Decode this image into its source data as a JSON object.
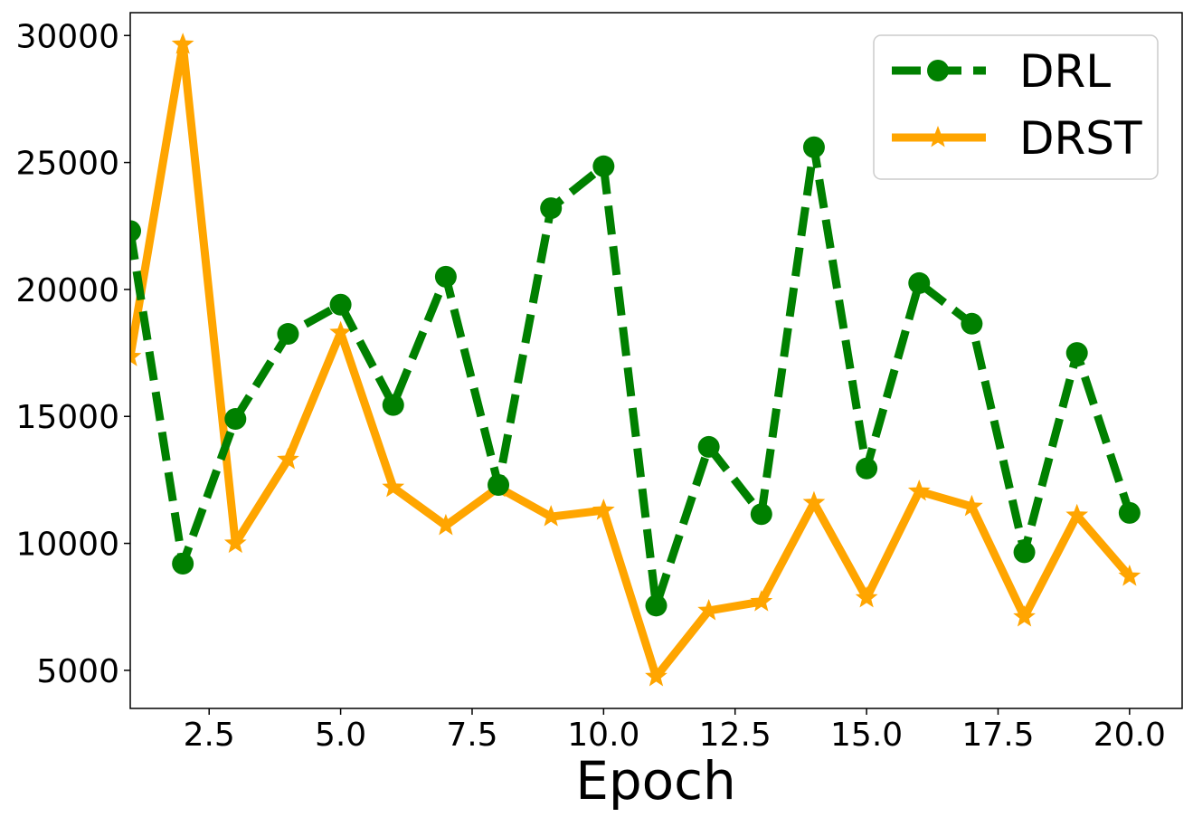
{
  "chart_data": {
    "type": "line",
    "title": "",
    "xlabel": "Epoch",
    "ylabel": "",
    "xlim": [
      1,
      21
    ],
    "ylim": [
      3500,
      30900
    ],
    "grid": false,
    "legend_position": "top-right",
    "x_ticks": [
      "2.5",
      "5.0",
      "7.5",
      "10.0",
      "12.5",
      "15.0",
      "17.5",
      "20.0"
    ],
    "x_tick_values": [
      2.5,
      5.0,
      7.5,
      10.0,
      12.5,
      15.0,
      17.5,
      20.0
    ],
    "y_ticks": [
      "5000",
      "10000",
      "15000",
      "20000",
      "25000",
      "30000"
    ],
    "y_tick_values": [
      5000,
      10000,
      15000,
      20000,
      25000,
      30000
    ],
    "x": [
      1,
      2,
      3,
      4,
      5,
      6,
      7,
      8,
      9,
      10,
      11,
      12,
      13,
      14,
      15,
      16,
      17,
      18,
      19,
      20
    ],
    "series": [
      {
        "name": "DRL",
        "color": "#008000",
        "line_style": "dashed",
        "marker": "circle",
        "values": [
          22300,
          9200,
          14900,
          18250,
          19400,
          15450,
          20500,
          12300,
          23200,
          24850,
          7550,
          13800,
          11150,
          25600,
          12950,
          20250,
          18650,
          9650,
          17500,
          11200
        ]
      },
      {
        "name": "DRST",
        "color": "#FFA500",
        "line_style": "solid",
        "marker": "star",
        "values": [
          17350,
          29650,
          10000,
          13300,
          18300,
          12200,
          10700,
          12200,
          11050,
          11300,
          4750,
          7350,
          7700,
          11600,
          7850,
          12050,
          11450,
          7100,
          11100,
          8700
        ]
      }
    ]
  }
}
